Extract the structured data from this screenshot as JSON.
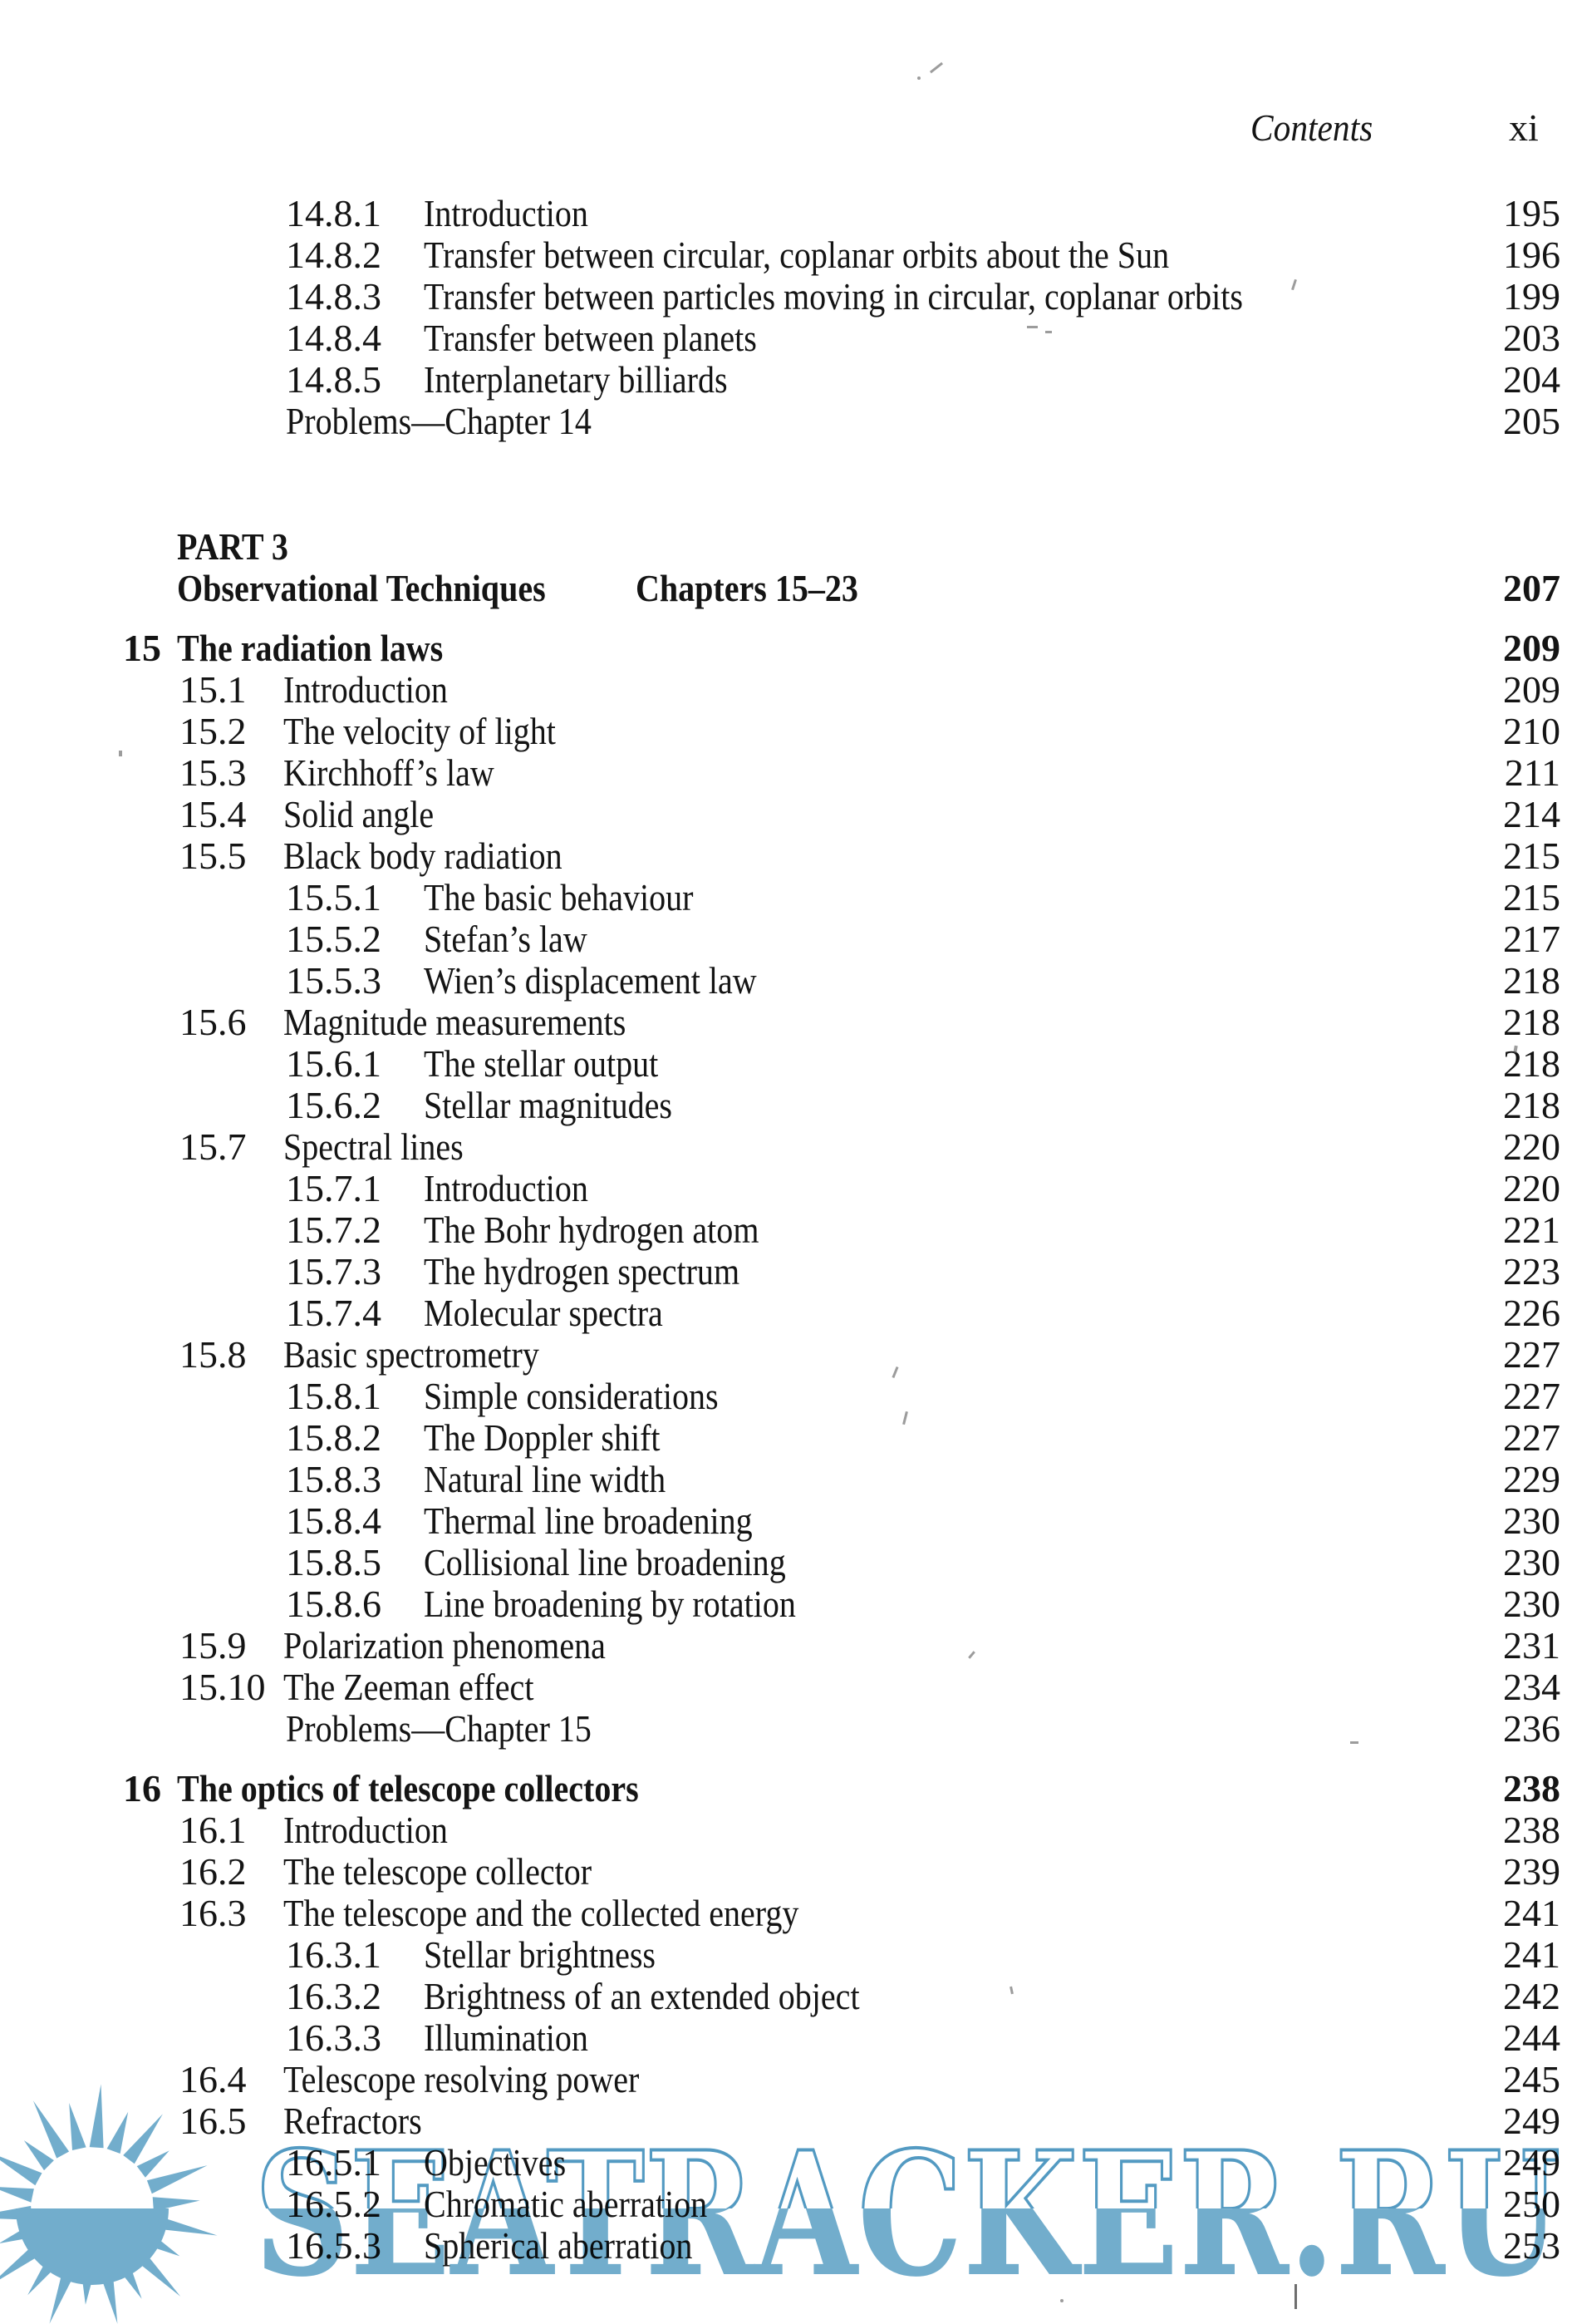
{
  "header": {
    "running_title": "Contents",
    "page_number": "xi"
  },
  "toc": {
    "entries": [
      {
        "type": "s3",
        "num": "14.8.1",
        "title": "Introduction",
        "page": "195"
      },
      {
        "type": "s3",
        "num": "14.8.2",
        "title": "Transfer between circular, coplanar orbits about the Sun",
        "page": "196"
      },
      {
        "type": "s3",
        "num": "14.8.3",
        "title": "Transfer between particles moving in circular, coplanar orbits",
        "page": "199"
      },
      {
        "type": "s3",
        "num": "14.8.4",
        "title": "Transfer between planets",
        "page": "203"
      },
      {
        "type": "s3",
        "num": "14.8.5",
        "title": "Interplanetary billiards",
        "page": "204"
      },
      {
        "type": "problems",
        "title": "Problems—Chapter 14",
        "page": "205"
      },
      {
        "type": "part-label",
        "title": "PART 3"
      },
      {
        "type": "part-title",
        "title": "Observational Techniques",
        "chapters": "Chapters 15–23",
        "page": "207"
      },
      {
        "type": "chapter",
        "num": "15",
        "title": "The radiation laws",
        "page": "209"
      },
      {
        "type": "s2",
        "num": "15.1",
        "title": "Introduction",
        "page": "209"
      },
      {
        "type": "s2",
        "num": "15.2",
        "title": "The velocity of light",
        "page": "210"
      },
      {
        "type": "s2",
        "num": "15.3",
        "title": "Kirchhoff’s law",
        "page": "211"
      },
      {
        "type": "s2",
        "num": "15.4",
        "title": "Solid angle",
        "page": "214"
      },
      {
        "type": "s2",
        "num": "15.5",
        "title": "Black body radiation",
        "page": "215"
      },
      {
        "type": "s3",
        "num": "15.5.1",
        "title": "The basic behaviour",
        "page": "215"
      },
      {
        "type": "s3",
        "num": "15.5.2",
        "title": "Stefan’s law",
        "page": "217"
      },
      {
        "type": "s3",
        "num": "15.5.3",
        "title": "Wien’s displacement law",
        "page": "218"
      },
      {
        "type": "s2",
        "num": "15.6",
        "title": "Magnitude measurements",
        "page": "218"
      },
      {
        "type": "s3",
        "num": "15.6.1",
        "title": "The stellar output",
        "page": "218"
      },
      {
        "type": "s3",
        "num": "15.6.2",
        "title": "Stellar magnitudes",
        "page": "218"
      },
      {
        "type": "s2",
        "num": "15.7",
        "title": "Spectral lines",
        "page": "220"
      },
      {
        "type": "s3",
        "num": "15.7.1",
        "title": "Introduction",
        "page": "220"
      },
      {
        "type": "s3",
        "num": "15.7.2",
        "title": "The Bohr hydrogen atom",
        "page": "221"
      },
      {
        "type": "s3",
        "num": "15.7.3",
        "title": "The hydrogen spectrum",
        "page": "223"
      },
      {
        "type": "s3",
        "num": "15.7.4",
        "title": "Molecular spectra",
        "page": "226"
      },
      {
        "type": "s2",
        "num": "15.8",
        "title": "Basic spectrometry",
        "page": "227"
      },
      {
        "type": "s3",
        "num": "15.8.1",
        "title": "Simple considerations",
        "page": "227"
      },
      {
        "type": "s3",
        "num": "15.8.2",
        "title": "The Doppler shift",
        "page": "227"
      },
      {
        "type": "s3",
        "num": "15.8.3",
        "title": "Natural line width",
        "page": "229"
      },
      {
        "type": "s3",
        "num": "15.8.4",
        "title": "Thermal line broadening",
        "page": "230"
      },
      {
        "type": "s3",
        "num": "15.8.5",
        "title": "Collisional line broadening",
        "page": "230"
      },
      {
        "type": "s3",
        "num": "15.8.6",
        "title": "Line broadening by rotation",
        "page": "230"
      },
      {
        "type": "s2",
        "num": "15.9",
        "title": "Polarization phenomena",
        "page": "231"
      },
      {
        "type": "s2",
        "num": "15.10",
        "title": "The Zeeman effect",
        "page": "234"
      },
      {
        "type": "problems",
        "title": "Problems—Chapter 15",
        "page": "236"
      },
      {
        "type": "chapter",
        "num": "16",
        "title": "The optics of telescope collectors",
        "page": "238"
      },
      {
        "type": "s2",
        "num": "16.1",
        "title": "Introduction",
        "page": "238"
      },
      {
        "type": "s2",
        "num": "16.2",
        "title": "The telescope collector",
        "page": "239"
      },
      {
        "type": "s2",
        "num": "16.3",
        "title": "The telescope and the collected energy",
        "page": "241"
      },
      {
        "type": "s3",
        "num": "16.3.1",
        "title": "Stellar brightness",
        "page": "241"
      },
      {
        "type": "s3",
        "num": "16.3.2",
        "title": "Brightness of an extended object",
        "page": "242"
      },
      {
        "type": "s3",
        "num": "16.3.3",
        "title": "Illumination",
        "page": "244"
      },
      {
        "type": "s2",
        "num": "16.4",
        "title": "Telescope resolving power",
        "page": "245"
      },
      {
        "type": "s2",
        "num": "16.5",
        "title": "Refractors",
        "page": "249"
      },
      {
        "type": "s3",
        "num": "16.5.1",
        "title": "Objectives",
        "page": "249"
      },
      {
        "type": "s3",
        "num": "16.5.2",
        "title": "Chromatic aberration",
        "page": "250"
      },
      {
        "type": "s3",
        "num": "16.5.3",
        "title": "Spherical aberration",
        "page": "253"
      }
    ]
  },
  "watermark": {
    "text": "SEATRACKER.RU",
    "fill": "#72adcc",
    "outline": "#539ac2",
    "top_fill": "#ffffff"
  }
}
